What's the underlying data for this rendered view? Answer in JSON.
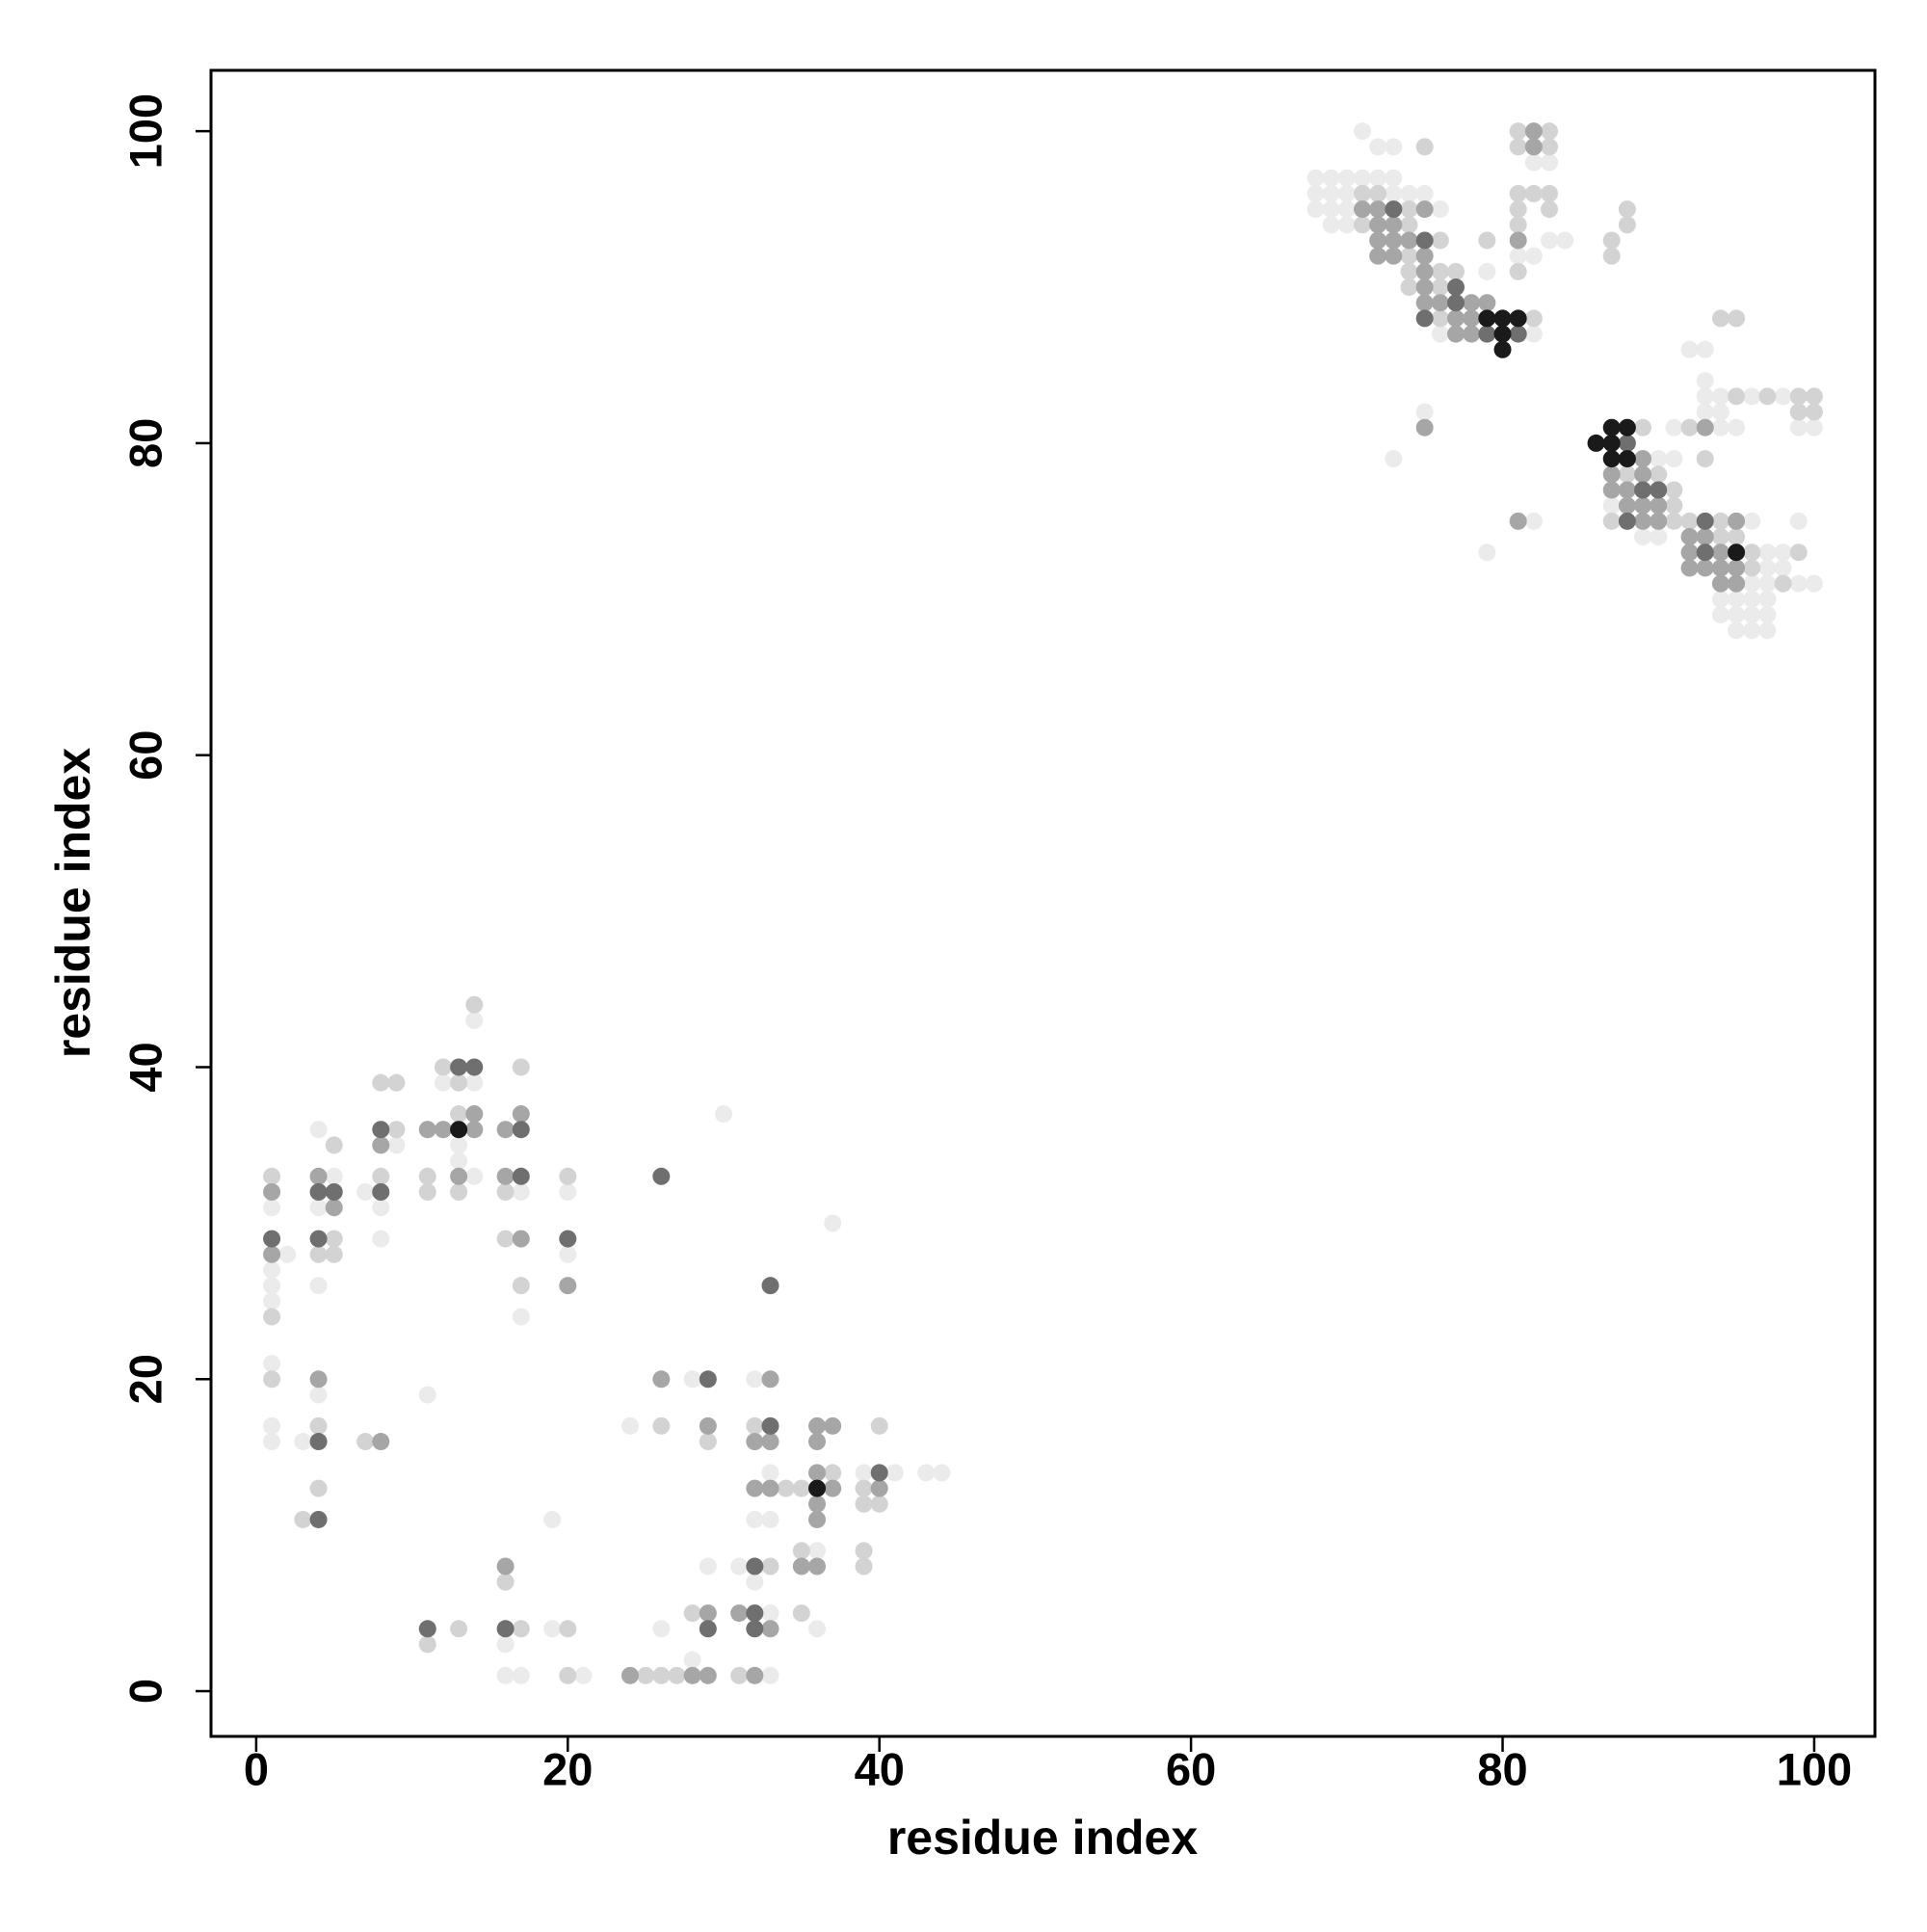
{
  "chart_data": {
    "type": "scatter",
    "xlabel": "residue index",
    "ylabel": "residue index",
    "xlim": [
      -2.9,
      103.9
    ],
    "ylim": [
      -2.9,
      103.9
    ],
    "xticks": [
      0,
      20,
      40,
      60,
      80,
      100
    ],
    "yticks": [
      0,
      20,
      40,
      60,
      80,
      100
    ],
    "series": [
      {
        "color": "#ebebeb",
        "x": [
          1,
          1,
          1,
          1,
          1,
          1,
          1,
          2,
          4,
          4,
          5,
          4,
          4,
          3,
          7,
          9,
          8,
          8,
          14,
          12,
          14,
          13,
          13,
          14,
          11,
          17,
          17,
          20,
          20,
          30,
          37,
          28,
          24,
          32,
          33,
          39,
          41,
          43,
          44,
          32,
          33,
          31,
          36,
          32,
          29,
          26,
          33,
          36,
          28,
          33,
          16,
          16,
          17,
          19,
          19,
          21,
          71,
          72,
          73,
          68,
          69,
          70,
          71,
          72,
          73,
          68,
          69,
          70,
          73,
          74,
          75,
          68,
          69,
          70,
          76,
          69,
          70,
          76,
          82,
          82,
          83,
          82,
          79,
          84,
          83,
          75,
          73,
          79,
          82,
          90,
          91,
          87,
          89,
          90,
          96,
          99,
          97,
          98,
          97,
          98,
          96,
          97,
          99,
          100,
          94,
          95,
          96,
          97,
          94,
          95,
          96,
          97,
          95,
          96,
          97,
          92,
          93,
          93,
          93,
          94,
          96,
          98,
          93,
          94,
          91,
          94,
          95,
          99,
          100,
          81
        ],
        "values": [
          31,
          27,
          26,
          25,
          21,
          17,
          16,
          28,
          36,
          31,
          33,
          26,
          19,
          16,
          32,
          35,
          31,
          29,
          43,
          39,
          39,
          35,
          34,
          33,
          19,
          32,
          24,
          32,
          28,
          37,
          30,
          20,
          17,
          20,
          14,
          14,
          14,
          14,
          14,
          11,
          11,
          8,
          9,
          7,
          8,
          4,
          5,
          4,
          2,
          1,
          3,
          1,
          1,
          11,
          4,
          1,
          100,
          99,
          99,
          97,
          97,
          97,
          97,
          97,
          97,
          96,
          96,
          96,
          96,
          96,
          96,
          95,
          95,
          95,
          95,
          94,
          94,
          87,
          87,
          98,
          98,
          92,
          91,
          93,
          93,
          82,
          79,
          73,
          75,
          79,
          79,
          76,
          74,
          74,
          75,
          75,
          73,
          73,
          72,
          72,
          71,
          71,
          71,
          71,
          70,
          70,
          70,
          70,
          69,
          69,
          69,
          69,
          68,
          68,
          68,
          86,
          86,
          84,
          83,
          83,
          83,
          83,
          82,
          82,
          81,
          81,
          81,
          81,
          81,
          92
        ]
      },
      {
        "color": "#d3d3d3",
        "x": [
          1,
          1,
          1,
          5,
          5,
          4,
          5,
          4,
          4,
          3,
          8,
          9,
          9,
          8,
          7,
          12,
          14,
          13,
          13,
          11,
          11,
          13,
          17,
          16,
          16,
          17,
          20,
          26,
          29,
          32,
          40,
          34,
          35,
          37,
          39,
          39,
          40,
          33,
          35,
          39,
          39,
          28,
          35,
          25,
          26,
          27,
          31,
          11,
          13,
          17,
          16,
          20,
          20,
          75,
          71,
          72,
          74,
          71,
          74,
          76,
          74,
          74,
          76,
          77,
          74,
          76,
          76,
          82,
          81,
          83,
          81,
          83,
          81,
          82,
          83,
          81,
          83,
          81,
          79,
          81,
          87,
          87,
          88,
          88,
          89,
          88,
          90,
          91,
          91,
          87,
          91,
          92,
          94,
          94,
          95,
          96,
          99,
          96,
          98,
          94,
          95,
          95,
          97,
          99,
          100,
          99,
          100,
          92,
          93
        ],
        "values": [
          33,
          24,
          20,
          35,
          29,
          28,
          28,
          17,
          13,
          11,
          39,
          39,
          36,
          33,
          16,
          40,
          44,
          39,
          37,
          33,
          32,
          32,
          40,
          32,
          29,
          26,
          33,
          17,
          16,
          17,
          17,
          13,
          13,
          14,
          13,
          12,
          12,
          8,
          9,
          9,
          8,
          5,
          5,
          1,
          1,
          1,
          1,
          3,
          4,
          4,
          7,
          4,
          1,
          99,
          96,
          96,
          95,
          94,
          94,
          93,
          92,
          91,
          91,
          91,
          90,
          90,
          88,
          88,
          100,
          100,
          99,
          99,
          96,
          96,
          96,
          95,
          95,
          94,
          93,
          91,
          93,
          92,
          95,
          94,
          81,
          78,
          78,
          77,
          76,
          75,
          75,
          75,
          75,
          74,
          74,
          73,
          73,
          72,
          71,
          88,
          88,
          83,
          83,
          83,
          83,
          82,
          82,
          81,
          79
        ]
      },
      {
        "color": "#a6a6a6",
        "x": [
          1,
          1,
          4,
          5,
          4,
          8,
          8,
          11,
          12,
          14,
          14,
          13,
          16,
          17,
          16,
          17,
          20,
          26,
          29,
          33,
          32,
          33,
          36,
          37,
          36,
          32,
          33,
          36,
          37,
          36,
          36,
          40,
          35,
          36,
          29,
          31,
          33,
          24,
          28,
          29,
          32,
          16,
          71,
          72,
          75,
          72,
          73,
          72,
          73,
          74,
          72,
          73,
          75,
          75,
          75,
          75,
          76,
          78,
          79,
          77,
          78,
          77,
          78,
          82,
          82,
          81,
          75,
          81,
          89,
          87,
          89,
          87,
          88,
          88,
          89,
          90,
          89,
          90,
          95,
          92,
          93,
          92,
          94,
          92,
          93,
          94,
          95,
          94,
          95,
          93
        ],
        "values": [
          32,
          28,
          33,
          31,
          20,
          35,
          16,
          36,
          36,
          36,
          37,
          33,
          36,
          37,
          33,
          29,
          26,
          20,
          17,
          20,
          16,
          16,
          17,
          17,
          16,
          13,
          13,
          14,
          13,
          12,
          11,
          13,
          8,
          8,
          5,
          5,
          4,
          1,
          1,
          1,
          1,
          8,
          95,
          95,
          95,
          94,
          94,
          93,
          93,
          93,
          92,
          92,
          92,
          91,
          90,
          89,
          89,
          89,
          89,
          88,
          88,
          87,
          87,
          100,
          99,
          93,
          81,
          75,
          79,
          78,
          78,
          77,
          77,
          76,
          76,
          76,
          75,
          75,
          75,
          74,
          74,
          73,
          73,
          72,
          72,
          72,
          72,
          71,
          71,
          81
        ]
      },
      {
        "color": "#6f6f6f",
        "x": [
          1,
          4,
          5,
          4,
          4,
          4,
          8,
          8,
          13,
          14,
          17,
          17,
          20,
          26,
          33,
          29,
          33,
          40,
          32,
          29,
          32,
          32,
          11,
          16,
          73,
          75,
          77,
          77,
          75,
          79,
          81,
          88,
          89,
          90,
          88,
          93,
          93
        ],
        "values": [
          29,
          32,
          32,
          29,
          16,
          11,
          36,
          32,
          40,
          40,
          36,
          33,
          29,
          33,
          26,
          20,
          17,
          14,
          8,
          4,
          5,
          4,
          4,
          4,
          95,
          93,
          90,
          89,
          88,
          87,
          87,
          80,
          77,
          77,
          75,
          75,
          73
        ]
      },
      {
        "color": "#1a1a1a",
        "x": [
          13,
          36,
          79,
          80,
          81,
          80,
          80,
          86,
          87,
          88,
          87,
          87,
          88,
          95
        ],
        "values": [
          36,
          13,
          88,
          88,
          88,
          87,
          86,
          80,
          81,
          81,
          80,
          79,
          79,
          73
        ]
      }
    ]
  }
}
